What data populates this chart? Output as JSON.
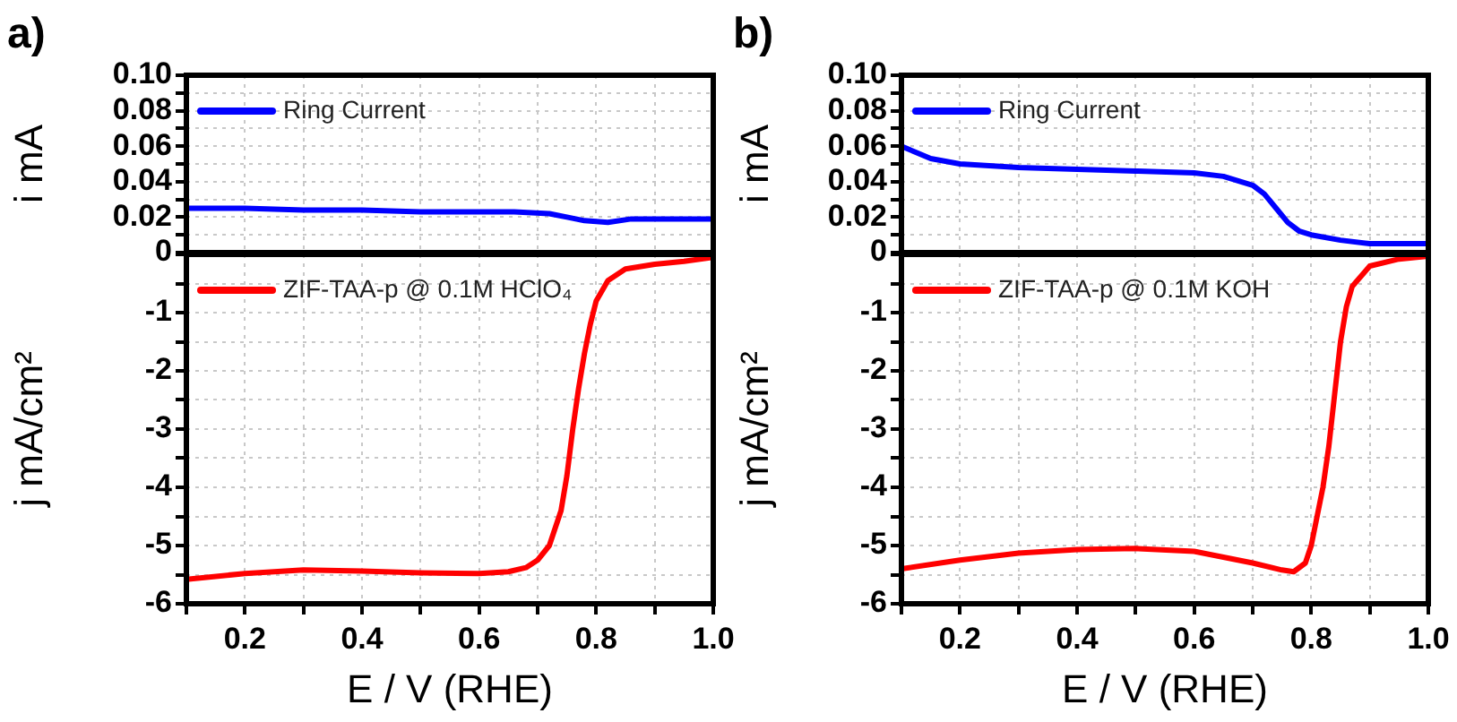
{
  "chart_data": [
    {
      "type": "line",
      "title": "a)",
      "ylabel": "i mA",
      "legend": "top left",
      "grid": true,
      "marker": "none",
      "line_style": "solid",
      "tick_labels": "y",
      "x": [
        0.1,
        0.2,
        0.3,
        0.4,
        0.5,
        0.6,
        0.66,
        0.72,
        0.75,
        0.78,
        0.82,
        0.86,
        0.9,
        0.95,
        1.0
      ],
      "xticks": [
        0.1,
        0.2,
        0.3,
        0.4,
        0.5,
        0.6,
        0.7,
        0.8,
        0.9,
        1
      ],
      "series": [
        {
          "name": "Ring Current",
          "color": "#0000ff",
          "values": [
            0.025,
            0.025,
            0.024,
            0.024,
            0.023,
            0.023,
            0.023,
            0.022,
            0.02,
            0.018,
            0.017,
            0.019,
            0.019,
            0.019,
            0.019
          ]
        }
      ],
      "xlim": [
        0.1,
        1.0
      ],
      "ylim": [
        0,
        0.1
      ],
      "yticks": [
        0,
        {
          "value": 0.01,
          "label": null
        },
        0.02,
        {
          "value": 0.03,
          "label": null
        },
        0.04,
        {
          "value": 0.05,
          "label": null
        },
        0.06,
        {
          "value": 0.07,
          "label": null
        },
        0.08,
        {
          "value": 0.09,
          "label": null
        },
        {
          "value": 0.1,
          "label": "0.10"
        }
      ]
    },
    {
      "type": "line",
      "xlabel": "E / V (RHE)",
      "ylabel": "j mA/cm²",
      "legend": "top left",
      "grid": true,
      "marker": "none",
      "line_style": "solid",
      "x": [
        0.1,
        0.2,
        0.3,
        0.4,
        0.5,
        0.6,
        0.65,
        0.68,
        0.7,
        0.72,
        0.74,
        0.75,
        0.76,
        0.77,
        0.78,
        0.79,
        0.8,
        0.82,
        0.85,
        0.9,
        0.95,
        1.0
      ],
      "series": [
        {
          "name": "ZIF-TAA-p @ 0.1M HClO₄",
          "color": "#ff0000",
          "values": [
            -5.58,
            -5.48,
            -5.42,
            -5.44,
            -5.47,
            -5.48,
            -5.45,
            -5.38,
            -5.25,
            -5.0,
            -4.4,
            -3.8,
            -3.0,
            -2.3,
            -1.7,
            -1.2,
            -0.8,
            -0.45,
            -0.25,
            -0.17,
            -0.12,
            -0.05
          ]
        }
      ],
      "xlim": [
        0.1,
        1.0
      ],
      "ylim": [
        -6,
        0
      ],
      "xticks": [
        {
          "value": 0.1,
          "label": null
        },
        0.2,
        {
          "value": 0.3,
          "label": null
        },
        0.4,
        {
          "value": 0.5,
          "label": null
        },
        0.6,
        {
          "value": 0.7,
          "label": null
        },
        0.8,
        {
          "value": 0.9,
          "label": null
        },
        {
          "value": 1.0,
          "label": "1.0"
        }
      ],
      "yticks": [
        -6,
        {
          "value": -5.5,
          "label": null
        },
        -5,
        {
          "value": -4.5,
          "label": null
        },
        -4,
        {
          "value": -3.5,
          "label": null
        },
        -3,
        {
          "value": -2.5,
          "label": null
        },
        -2,
        {
          "value": -1.5,
          "label": null
        },
        -1,
        {
          "value": -0.5,
          "label": null
        },
        {
          "value": 0,
          "label": null
        }
      ]
    },
    {
      "type": "line",
      "title": "b)",
      "ylabel": "i mA",
      "legend": "top left",
      "grid": true,
      "marker": "none",
      "line_style": "solid",
      "tick_labels": "y",
      "x": [
        0.1,
        0.15,
        0.2,
        0.3,
        0.4,
        0.5,
        0.6,
        0.65,
        0.7,
        0.72,
        0.74,
        0.76,
        0.78,
        0.8,
        0.85,
        0.9,
        1.0
      ],
      "xticks": [
        0.1,
        0.2,
        0.3,
        0.4,
        0.5,
        0.6,
        0.7,
        0.8,
        0.9,
        1
      ],
      "series": [
        {
          "name": "Ring Current",
          "color": "#0000ff",
          "values": [
            0.06,
            0.053,
            0.05,
            0.048,
            0.047,
            0.046,
            0.045,
            0.043,
            0.038,
            0.033,
            0.025,
            0.017,
            0.012,
            0.01,
            0.007,
            0.005,
            0.005
          ]
        }
      ],
      "xlim": [
        0.1,
        1.0
      ],
      "ylim": [
        0,
        0.1
      ],
      "yticks": [
        0,
        {
          "value": 0.01,
          "label": null
        },
        0.02,
        {
          "value": 0.03,
          "label": null
        },
        0.04,
        {
          "value": 0.05,
          "label": null
        },
        0.06,
        {
          "value": 0.07,
          "label": null
        },
        0.08,
        {
          "value": 0.09,
          "label": null
        },
        {
          "value": 0.1,
          "label": "0.10"
        }
      ]
    },
    {
      "type": "line",
      "xlabel": "E / V (RHE)",
      "ylabel": "j mA/cm²",
      "legend": "top left",
      "grid": true,
      "marker": "none",
      "line_style": "solid",
      "x": [
        0.1,
        0.2,
        0.3,
        0.4,
        0.5,
        0.6,
        0.7,
        0.75,
        0.77,
        0.79,
        0.8,
        0.82,
        0.83,
        0.84,
        0.85,
        0.86,
        0.87,
        0.9,
        0.95,
        1.0
      ],
      "series": [
        {
          "name": "ZIF-TAA-p @ 0.1M KOH",
          "color": "#ff0000",
          "values": [
            -5.4,
            -5.25,
            -5.13,
            -5.07,
            -5.05,
            -5.1,
            -5.3,
            -5.42,
            -5.45,
            -5.3,
            -5.0,
            -4.0,
            -3.3,
            -2.4,
            -1.5,
            -0.9,
            -0.55,
            -0.2,
            -0.08,
            -0.03
          ]
        }
      ],
      "xlim": [
        0.1,
        1.0
      ],
      "ylim": [
        -6,
        0
      ],
      "xticks": [
        {
          "value": 0.1,
          "label": null
        },
        0.2,
        {
          "value": 0.3,
          "label": null
        },
        0.4,
        {
          "value": 0.5,
          "label": null
        },
        0.6,
        {
          "value": 0.7,
          "label": null
        },
        0.8,
        {
          "value": 0.9,
          "label": null
        },
        {
          "value": 1.0,
          "label": "1.0"
        }
      ],
      "yticks": [
        -6,
        {
          "value": -5.5,
          "label": null
        },
        -5,
        {
          "value": -4.5,
          "label": null
        },
        -4,
        {
          "value": -3.5,
          "label": null
        },
        -3,
        {
          "value": -2.5,
          "label": null
        },
        -2,
        {
          "value": -1.5,
          "label": null
        },
        -1,
        {
          "value": -0.5,
          "label": null
        },
        {
          "value": 0,
          "label": null
        }
      ]
    }
  ]
}
